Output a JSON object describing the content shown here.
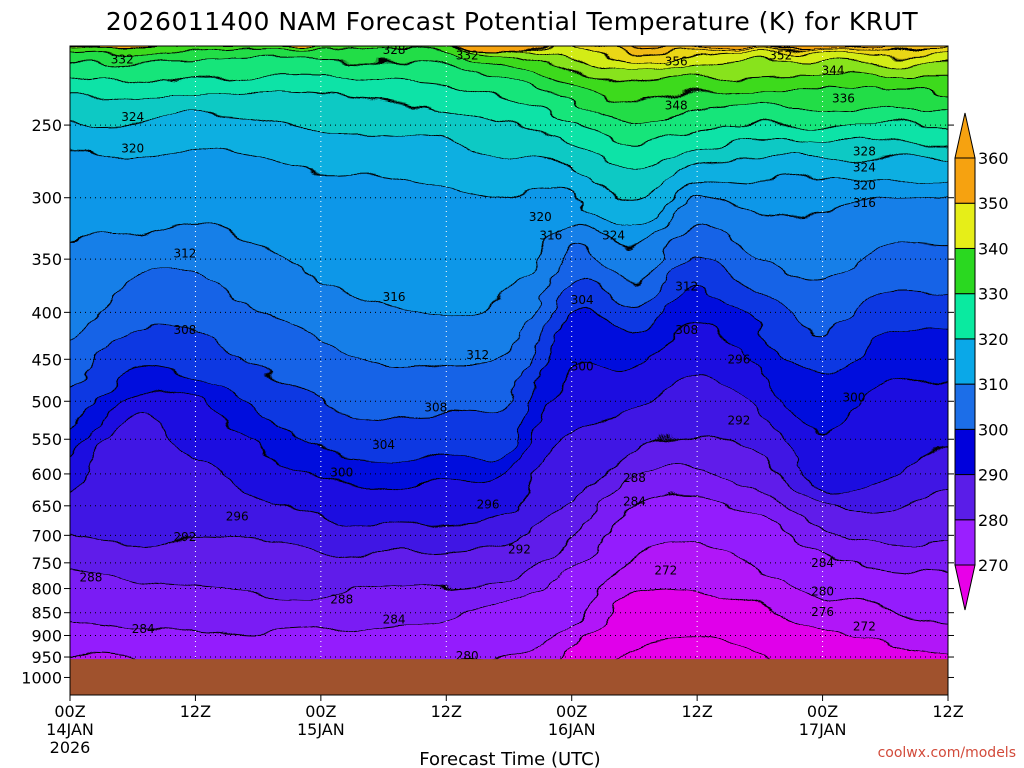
{
  "chart_data": {
    "type": "heatmap",
    "title": "2026011400 NAM Forecast Potential Temperature (K) for KRUT",
    "xlabel": "Forecast Time (UTC)",
    "ylabel": "",
    "units": "K",
    "credit": "coolwx.com/models",
    "x_ticks": [
      {
        "hour": 0,
        "label": "00Z",
        "sub": "14JAN",
        "sub2": "2026"
      },
      {
        "hour": 12,
        "label": "12Z",
        "sub": "",
        "sub2": ""
      },
      {
        "hour": 24,
        "label": "00Z",
        "sub": "15JAN",
        "sub2": ""
      },
      {
        "hour": 36,
        "label": "12Z",
        "sub": "",
        "sub2": ""
      },
      {
        "hour": 48,
        "label": "00Z",
        "sub": "16JAN",
        "sub2": ""
      },
      {
        "hour": 60,
        "label": "12Z",
        "sub": "",
        "sub2": ""
      },
      {
        "hour": 72,
        "label": "00Z",
        "sub": "17JAN",
        "sub2": ""
      },
      {
        "hour": 84,
        "label": "12Z",
        "sub": "",
        "sub2": ""
      }
    ],
    "xlim": [
      0,
      84
    ],
    "y_ticks": [
      250,
      300,
      350,
      400,
      450,
      500,
      550,
      600,
      650,
      700,
      750,
      800,
      850,
      900,
      950,
      1000
    ],
    "ylim": [
      1050,
      200
    ],
    "y_scale": "log",
    "surface_pressure_hpa": 955,
    "contour_interval": 2,
    "colorbar": {
      "levels": [
        270,
        280,
        290,
        300,
        310,
        320,
        330,
        340,
        350,
        360
      ],
      "colors": [
        "#e800e8",
        "#9a1fff",
        "#5a1de8",
        "#0000dc",
        "#1c6ee8",
        "#0aa8e8",
        "#0aeaa0",
        "#2ad820",
        "#e6ee18",
        "#f6a210"
      ]
    },
    "contour_labels": [
      {
        "value": 332,
        "hour": 5,
        "p": 212
      },
      {
        "value": 328,
        "hour": 31,
        "p": 207
      },
      {
        "value": 332,
        "hour": 38,
        "p": 210
      },
      {
        "value": 356,
        "hour": 58,
        "p": 213
      },
      {
        "value": 352,
        "hour": 68,
        "p": 210
      },
      {
        "value": 348,
        "hour": 58,
        "p": 238
      },
      {
        "value": 344,
        "hour": 73,
        "p": 218
      },
      {
        "value": 336,
        "hour": 74,
        "p": 234
      },
      {
        "value": 324,
        "hour": 6,
        "p": 245
      },
      {
        "value": 320,
        "hour": 6,
        "p": 265
      },
      {
        "value": 328,
        "hour": 76,
        "p": 267
      },
      {
        "value": 324,
        "hour": 76,
        "p": 278
      },
      {
        "value": 320,
        "hour": 76,
        "p": 291
      },
      {
        "value": 316,
        "hour": 76,
        "p": 304
      },
      {
        "value": 320,
        "hour": 45,
        "p": 315
      },
      {
        "value": 316,
        "hour": 46,
        "p": 330
      },
      {
        "value": 324,
        "hour": 52,
        "p": 330
      },
      {
        "value": 312,
        "hour": 11,
        "p": 345
      },
      {
        "value": 316,
        "hour": 31,
        "p": 385
      },
      {
        "value": 304,
        "hour": 49,
        "p": 388
      },
      {
        "value": 312,
        "hour": 59,
        "p": 375
      },
      {
        "value": 308,
        "hour": 11,
        "p": 418
      },
      {
        "value": 308,
        "hour": 59,
        "p": 418
      },
      {
        "value": 312,
        "hour": 39,
        "p": 445
      },
      {
        "value": 300,
        "hour": 49,
        "p": 458
      },
      {
        "value": 296,
        "hour": 64,
        "p": 450
      },
      {
        "value": 300,
        "hour": 75,
        "p": 495
      },
      {
        "value": 308,
        "hour": 35,
        "p": 508
      },
      {
        "value": 292,
        "hour": 64,
        "p": 525
      },
      {
        "value": 304,
        "hour": 30,
        "p": 558
      },
      {
        "value": 300,
        "hour": 26,
        "p": 598
      },
      {
        "value": 288,
        "hour": 54,
        "p": 606
      },
      {
        "value": 284,
        "hour": 54,
        "p": 643
      },
      {
        "value": 296,
        "hour": 40,
        "p": 648
      },
      {
        "value": 296,
        "hour": 16,
        "p": 668
      },
      {
        "value": 292,
        "hour": 11,
        "p": 703
      },
      {
        "value": 292,
        "hour": 43,
        "p": 725
      },
      {
        "value": 284,
        "hour": 72,
        "p": 750
      },
      {
        "value": 272,
        "hour": 57,
        "p": 765
      },
      {
        "value": 288,
        "hour": 2,
        "p": 778
      },
      {
        "value": 280,
        "hour": 72,
        "p": 806
      },
      {
        "value": 288,
        "hour": 26,
        "p": 822
      },
      {
        "value": 276,
        "hour": 72,
        "p": 848
      },
      {
        "value": 284,
        "hour": 31,
        "p": 865
      },
      {
        "value": 272,
        "hour": 76,
        "p": 880
      },
      {
        "value": 284,
        "hour": 7,
        "p": 885
      },
      {
        "value": 280,
        "hour": 38,
        "p": 948
      }
    ]
  }
}
